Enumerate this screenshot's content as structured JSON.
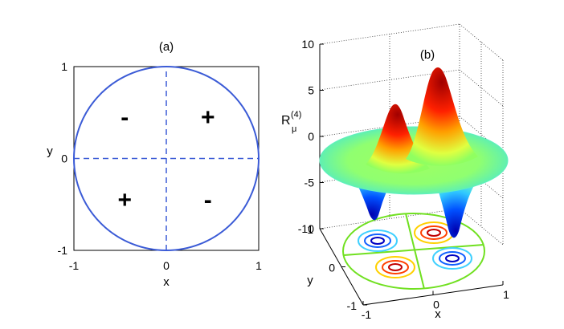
{
  "chart_data": [
    {
      "type": "line",
      "title": "(a)",
      "xlabel": "x",
      "ylabel": "y",
      "xlim": [
        -1,
        1
      ],
      "ylim": [
        -1,
        1
      ],
      "xticks": [
        "-1",
        "0",
        "1"
      ],
      "yticks": [
        "-1",
        "0",
        "1"
      ],
      "circle": {
        "center": [
          0,
          0
        ],
        "radius": 1,
        "color": "#3b5bd6"
      },
      "dashed_axes": {
        "color": "#3b5bd6"
      },
      "quadrant_signs": [
        {
          "x": -0.45,
          "y": 0.45,
          "text": "-"
        },
        {
          "x": 0.45,
          "y": 0.45,
          "text": "+"
        },
        {
          "x": -0.45,
          "y": -0.45,
          "text": "+"
        },
        {
          "x": 0.45,
          "y": -0.45,
          "text": "-"
        }
      ]
    },
    {
      "type": "surface",
      "title": "(b)",
      "xlabel": "x",
      "ylabel": "y",
      "zlabel": "R",
      "zlabel_sub": "μ",
      "zlabel_sup": "(4)",
      "xlim": [
        -1,
        1
      ],
      "ylim": [
        -1,
        1
      ],
      "zlim": [
        -10,
        10
      ],
      "xticks": [
        "-1",
        "0",
        "1"
      ],
      "yticks": [
        "-1",
        "0",
        "1"
      ],
      "zticks": [
        "10",
        "5",
        "0",
        "-5",
        "-10"
      ],
      "grid": true,
      "colormap": "jet",
      "peaks": [
        {
          "x": 0.6,
          "y": 0.6,
          "z": 8
        },
        {
          "x": -0.6,
          "y": -0.6,
          "z": 8
        },
        {
          "x": -0.6,
          "y": 0.6,
          "z": -8
        },
        {
          "x": 0.6,
          "y": -0.6,
          "z": -8
        }
      ],
      "contour_projection": true
    }
  ]
}
